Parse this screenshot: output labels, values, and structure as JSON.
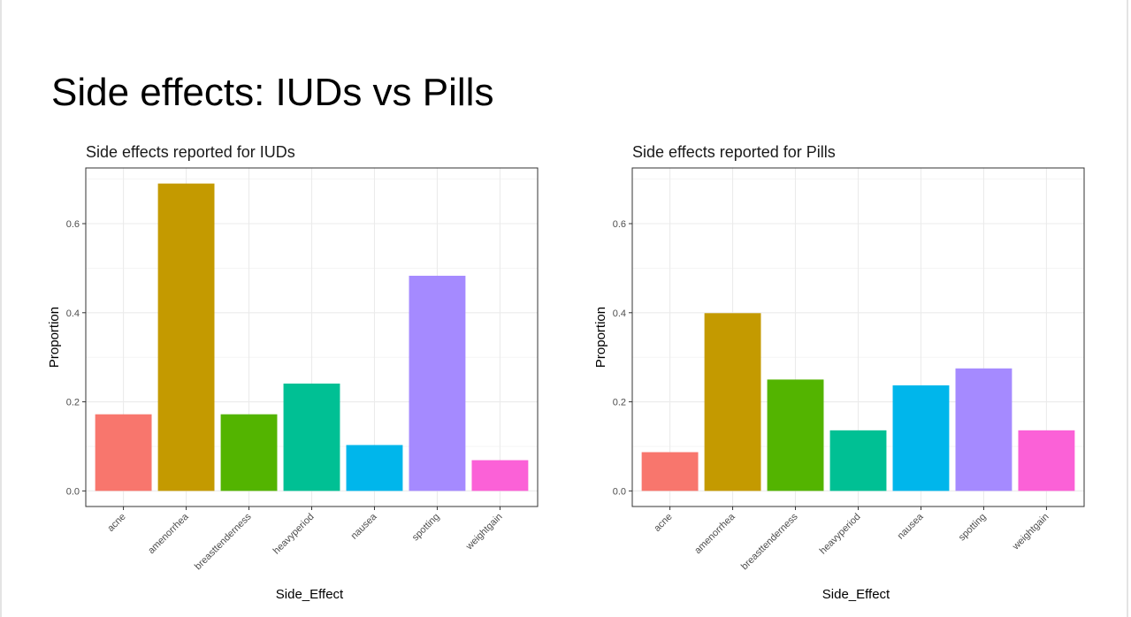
{
  "slide": {
    "title": "Side effects: IUDs vs Pills"
  },
  "chart_data": [
    {
      "type": "bar",
      "title": "Side effects reported for IUDs",
      "xlabel": "Side_Effect",
      "ylabel": "Proportion",
      "categories": [
        "acne",
        "amenorrhea",
        "breasttenderness",
        "heavyperiod",
        "nausea",
        "spotting",
        "weightgain"
      ],
      "values": [
        0.172,
        0.69,
        0.172,
        0.241,
        0.103,
        0.483,
        0.069
      ],
      "colors": [
        "#F8766D",
        "#C49A00",
        "#53B400",
        "#00C094",
        "#00B6EB",
        "#A58AFF",
        "#FB61D7"
      ],
      "ylim": [
        -0.035,
        0.725
      ],
      "yticks": [
        0.0,
        0.2,
        0.4,
        0.6
      ],
      "ytick_labels": [
        "0.0",
        "0.2",
        "0.4",
        "0.6"
      ],
      "grid": true
    },
    {
      "type": "bar",
      "title": "Side effects reported for Pills",
      "xlabel": "Side_Effect",
      "ylabel": "Proportion",
      "categories": [
        "acne",
        "amenorrhea",
        "breasttenderness",
        "heavyperiod",
        "nausea",
        "spotting",
        "weightgain"
      ],
      "values": [
        0.087,
        0.399,
        0.25,
        0.136,
        0.237,
        0.275,
        0.136
      ],
      "colors": [
        "#F8766D",
        "#C49A00",
        "#53B400",
        "#00C094",
        "#00B6EB",
        "#A58AFF",
        "#FB61D7"
      ],
      "ylim": [
        -0.035,
        0.725
      ],
      "yticks": [
        0.0,
        0.2,
        0.4,
        0.6
      ],
      "ytick_labels": [
        "0.0",
        "0.2",
        "0.4",
        "0.6"
      ],
      "grid": true
    }
  ]
}
